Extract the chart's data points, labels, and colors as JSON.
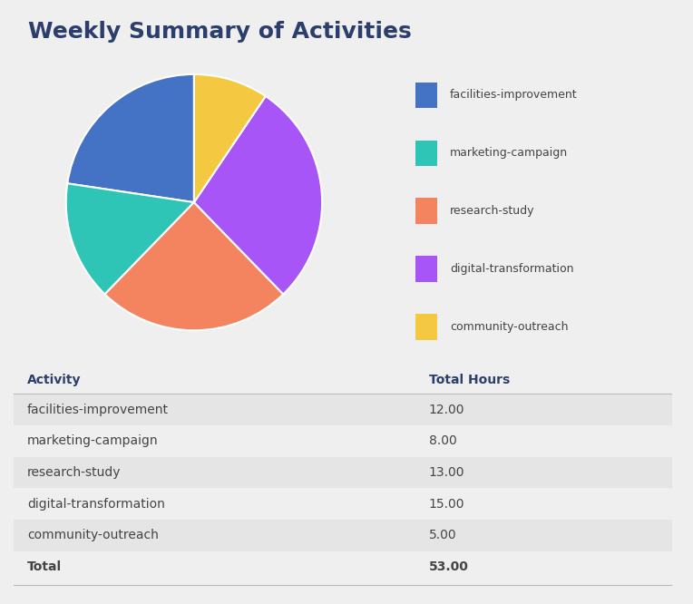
{
  "title": "Weekly Summary of Activities",
  "activities": [
    "facilities-improvement",
    "marketing-campaign",
    "research-study",
    "digital-transformation",
    "community-outreach"
  ],
  "hours": [
    12.0,
    8.0,
    13.0,
    15.0,
    5.0
  ],
  "total": 53.0,
  "colors": [
    "#4472C4",
    "#2EC4B6",
    "#F4845F",
    "#A855F7",
    "#F5C842"
  ],
  "background_color": "#EFEFEF",
  "title_color": "#2C3E6B",
  "table_header_color": "#2C3E6B",
  "row_alt_color": "#E5E5E5",
  "text_color": "#444444",
  "line_color": "#BBBBBB",
  "title_fontsize": 18,
  "legend_fontsize": 9,
  "table_fontsize": 10
}
